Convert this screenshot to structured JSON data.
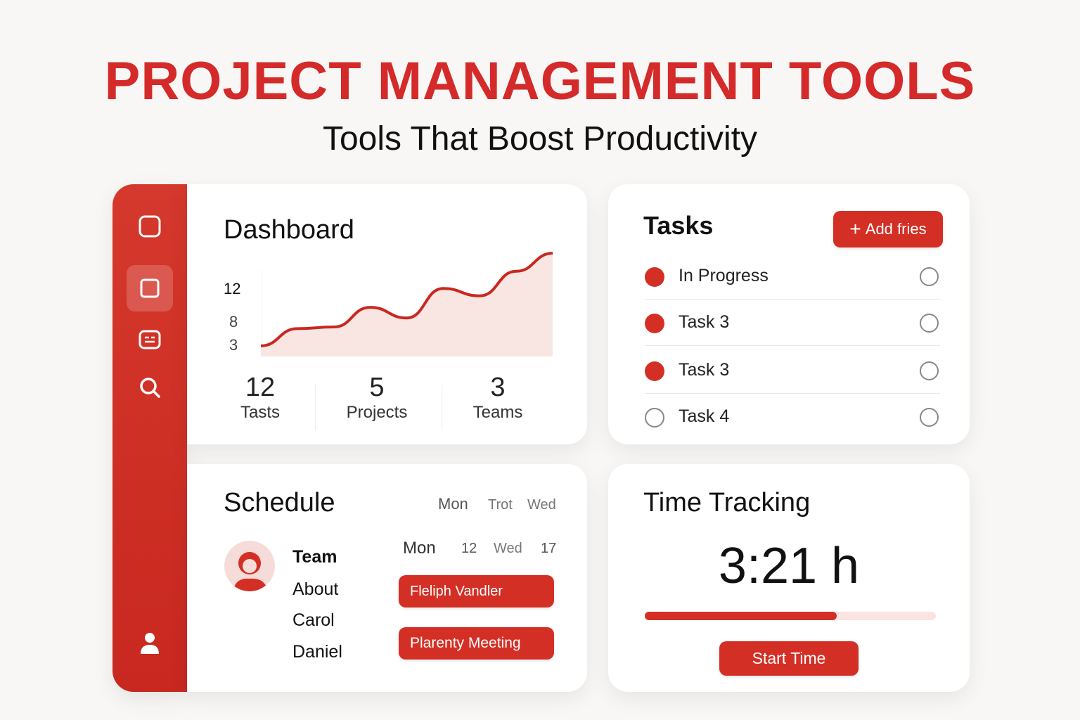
{
  "header": {
    "title": "PROJECT MANAGEMENT TOOLS",
    "subtitle": "Tools That Boost Productivity"
  },
  "colors": {
    "accent": "#d42f25",
    "fill": "#f9e5e2",
    "background": "#f8f7f5"
  },
  "sidebar": {
    "icons": [
      "square-icon",
      "square-icon",
      "card-icon",
      "search-icon",
      "user-icon"
    ],
    "active_index": 1
  },
  "dashboard": {
    "title": "Dashboard",
    "stats": [
      {
        "value": "12",
        "label": "Tasts"
      },
      {
        "value": "5",
        "label": "Projects"
      },
      {
        "value": "3",
        "label": "Teams"
      }
    ]
  },
  "chart_data": {
    "type": "area",
    "title": "",
    "xlabel": "",
    "ylabel": "",
    "y_tick_labels": [
      "12",
      "8",
      "3"
    ],
    "x": [
      0,
      1,
      2,
      3,
      4,
      5,
      6,
      7,
      8
    ],
    "values": [
      5.0,
      7.1,
      7.3,
      9.7,
      8.4,
      12.0,
      11.1,
      14.1,
      16.3
    ],
    "ylim": [
      3.7,
      17
    ],
    "grid": false
  },
  "tasks": {
    "title": "Tasks",
    "add_button": "Add fries",
    "add_icon": "plus-icon",
    "items": [
      {
        "label": "In Progress",
        "status": "filled"
      },
      {
        "label": "Task 3",
        "status": "filled"
      },
      {
        "label": "Task 3",
        "status": "filled"
      },
      {
        "label": "Task 4",
        "status": "empty"
      }
    ]
  },
  "schedule": {
    "title": "Schedule",
    "header_days": [
      "Mon",
      "Trot",
      "Wed"
    ],
    "row_days": [
      "Mon",
      "12",
      "Wed",
      "17"
    ],
    "people": [
      "Team",
      "About",
      "Carol",
      "Daniel"
    ],
    "events": [
      "Fleliph Vandler",
      "Plarenty Meeting"
    ]
  },
  "time_tracking": {
    "title": "Time Tracking",
    "value": "3:21 h",
    "progress": 0.66,
    "button": "Start Time"
  }
}
